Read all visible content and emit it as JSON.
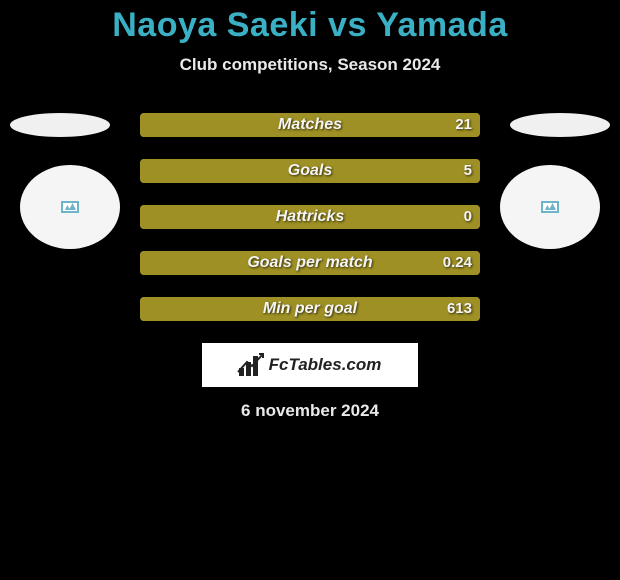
{
  "title": "Naoya Saeki vs Yamada",
  "subtitle": "Club competitions, Season 2024",
  "date_text": "6 november 2024",
  "logo_text": "FcTables.com",
  "colors": {
    "background": "#000000",
    "title_color": "#3ab0c4",
    "text_color": "#e9e9e9",
    "bar_fill": "#9e9024",
    "bar_border": "#9e9024",
    "logo_bg": "#ffffff",
    "ellipse_bg": "#f0f0f0",
    "circle_bg": "#f5f5f5"
  },
  "bars": {
    "track_width": 340,
    "rows": [
      {
        "label": "Matches",
        "right_value": "21",
        "fill_fraction": 1.0
      },
      {
        "label": "Goals",
        "right_value": "5",
        "fill_fraction": 1.0
      },
      {
        "label": "Hattricks",
        "right_value": "0",
        "fill_fraction": 1.0
      },
      {
        "label": "Goals per match",
        "right_value": "0.24",
        "fill_fraction": 1.0
      },
      {
        "label": "Min per goal",
        "right_value": "613",
        "fill_fraction": 1.0
      }
    ]
  }
}
